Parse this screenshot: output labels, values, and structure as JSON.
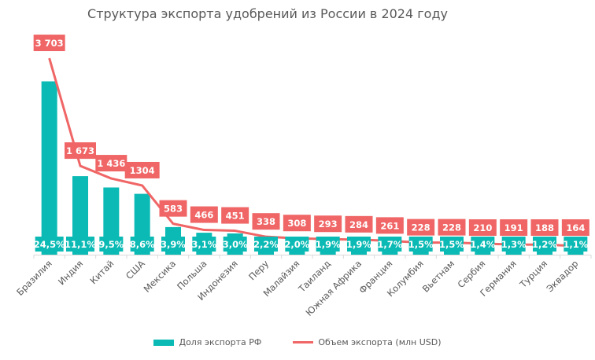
{
  "chart_data": {
    "type": "bar+line",
    "title": "Структура экспорта удобрений из России в 2024 году",
    "categories": [
      "Бразилия",
      "Индия",
      "Китай",
      "США",
      "Мексика",
      "Польша",
      "Индонезия",
      "Перу",
      "Малайзия",
      "Таиланд",
      "Южная Африка",
      "Франция",
      "Колумбия",
      "Вьетнам",
      "Сербия",
      "Германия",
      "Турция",
      "Эквадор"
    ],
    "series": [
      {
        "name": "Доля экспорта РФ",
        "type": "bar",
        "axis": "primary",
        "values": [
          24.5,
          11.1,
          9.5,
          8.6,
          3.9,
          3.1,
          3.0,
          2.2,
          2.0,
          1.9,
          1.9,
          1.7,
          1.5,
          1.5,
          1.4,
          1.3,
          1.2,
          1.1
        ],
        "labels": [
          "24,5%",
          "11,1%",
          "9,5%",
          "8,6%",
          "3,9%",
          "3,1%",
          "3,0%",
          "2,2%",
          "2,0%",
          "1,9%",
          "1,9%",
          "1,7%",
          "1,5%",
          "1,5%",
          "1,4%",
          "1,3%",
          "1,2%",
          "1,1%"
        ],
        "color": "#0BBAB4"
      },
      {
        "name": "Объем экспорта (млн USD)",
        "type": "line",
        "axis": "secondary",
        "values": [
          3703,
          1673,
          1436,
          1304,
          583,
          466,
          451,
          338,
          308,
          293,
          284,
          261,
          228,
          228,
          210,
          191,
          188,
          164
        ],
        "labels": [
          "3 703",
          "1 673",
          "1 436",
          "1304",
          "583",
          "466",
          "451",
          "338",
          "308",
          "293",
          "284",
          "261",
          "228",
          "228",
          "210",
          "191",
          "188",
          "164"
        ],
        "color": "#F06666"
      }
    ],
    "ylim_primary": [
      0,
      30
    ],
    "ylim_secondary": [
      0,
      4000
    ],
    "axes_visible": false,
    "grid": false,
    "legend": "bottom"
  }
}
